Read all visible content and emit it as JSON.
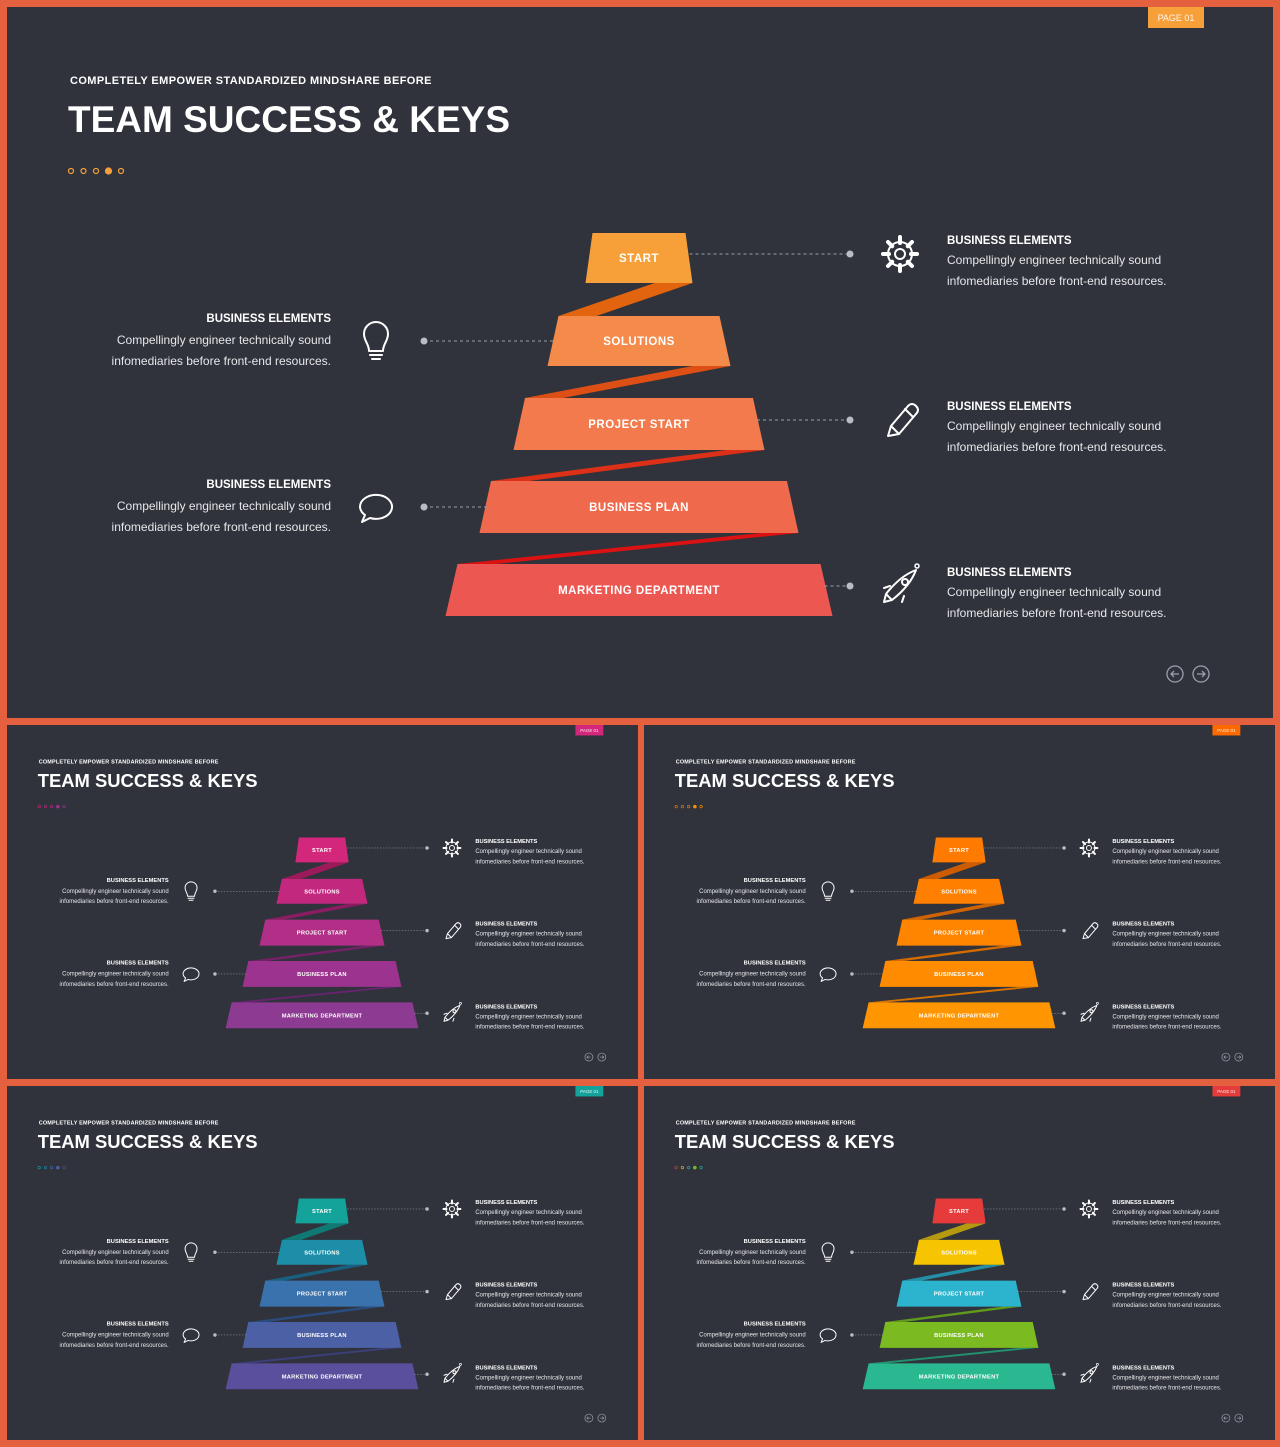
{
  "page_badge": "PAGE 01",
  "slide": {
    "subtitle": "COMPLETELY EMPOWER STANDARDIZED MINDSHARE BEFORE",
    "title": "TEAM SUCCESS & KEYS",
    "levels": [
      "START",
      "SOLUTIONS",
      "PROJECT START",
      "BUSINESS PLAN",
      "MARKETING DEPARTMENT"
    ],
    "callouts": [
      {
        "side": "right",
        "level": 0,
        "icon": "gear-icon",
        "heading": "BUSINESS ELEMENTS",
        "line1": "Compellingly engineer technically sound",
        "line2": "infomediaries before front-end resources."
      },
      {
        "side": "left",
        "level": 1,
        "icon": "lightbulb-icon",
        "heading": "BUSINESS ELEMENTS",
        "line1": "Compellingly engineer technically sound",
        "line2": "infomediaries before front-end resources."
      },
      {
        "side": "right",
        "level": 2,
        "icon": "pencil-icon",
        "heading": "BUSINESS ELEMENTS",
        "line1": "Compellingly engineer technically sound",
        "line2": "infomediaries before front-end resources."
      },
      {
        "side": "left",
        "level": 3,
        "icon": "speech-bubble-icon",
        "heading": "BUSINESS ELEMENTS",
        "line1": "Compellingly engineer technically sound",
        "line2": "infomediaries before front-end resources."
      },
      {
        "side": "right",
        "level": 4,
        "icon": "rocket-icon",
        "heading": "BUSINESS ELEMENTS",
        "line1": "Compellingly engineer technically sound",
        "line2": "infomediaries before front-end resources."
      }
    ]
  },
  "variants": [
    {
      "id": "orange-red",
      "accent": "#f7a03a",
      "tiers": [
        "#f7a03a",
        "#f58b4a",
        "#f27a4c",
        "#ef6a4d",
        "#ec5752"
      ],
      "ribbons": [
        "#e2640f",
        "#dd4f15",
        "#dc3018",
        "#dc1212"
      ],
      "dots": [
        "#f7a03a",
        "#f7a03a",
        "#f7a03a",
        "#f7a03a",
        "#f7a03a"
      ]
    },
    {
      "id": "magenta",
      "accent": "#d2277a",
      "tiers": [
        "#d2277a",
        "#c3287f",
        "#b12f86",
        "#9c338e",
        "#8d3a93"
      ],
      "ribbons": [
        "#9d1a5a",
        "#8a1c62",
        "#752168",
        "#662470"
      ],
      "dots": [
        "#d2277a",
        "#c3287f",
        "#b12f86",
        "#9c338e",
        "#8d3a93"
      ]
    },
    {
      "id": "orange",
      "accent": "#ff6a00",
      "tiers": [
        "#ff7a00",
        "#ff7f00",
        "#ff8500",
        "#ff8c00",
        "#ff9500"
      ],
      "ribbons": [
        "#cc5c00",
        "#cf6300",
        "#d36b00",
        "#d67200"
      ],
      "dots": [
        "#ff7a00",
        "#ff7f00",
        "#ff8500",
        "#ff8c00",
        "#ff9500"
      ]
    },
    {
      "id": "teal-indigo",
      "accent": "#14a39b",
      "tiers": [
        "#14a39b",
        "#1d8ea8",
        "#3a72ad",
        "#4c60a6",
        "#5a4f9c"
      ],
      "ribbons": [
        "#0f7a74",
        "#195f80",
        "#2a4d80",
        "#3c3f7a"
      ],
      "dots": [
        "#14a39b",
        "#1d8ea8",
        "#3a72ad",
        "#4c60a6",
        "#5a4f9c"
      ]
    },
    {
      "id": "rainbow",
      "accent": "#e53b3b",
      "tiers": [
        "#e53b3b",
        "#f6c400",
        "#2cb4cf",
        "#7cba22",
        "#29b88f"
      ],
      "ribbons": [
        "#b59a10",
        "#238fa6",
        "#5f9a1c",
        "#22916f"
      ],
      "dots": [
        "#e53b3b",
        "#f6c400",
        "#2cb4cf",
        "#7cba22",
        "#29b88f"
      ]
    }
  ]
}
